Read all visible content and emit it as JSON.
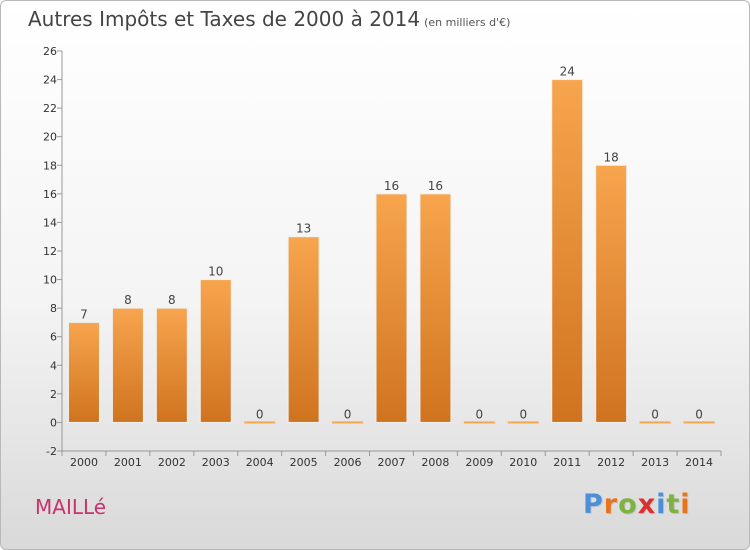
{
  "header": {
    "title": "Autres Impôts et Taxes de 2000 à 2014",
    "subtitle": "(en milliers d'€)"
  },
  "footer": {
    "commune": "MAILLé",
    "brand": "Proxiti",
    "brand_colors": [
      "#4a90d9",
      "#e8731c",
      "#7fb33f",
      "#d9322e",
      "#4a90d9",
      "#7fb33f",
      "#e8731c"
    ]
  },
  "chart_data": {
    "type": "bar",
    "categories": [
      "2000",
      "2001",
      "2002",
      "2003",
      "2004",
      "2005",
      "2006",
      "2007",
      "2008",
      "2009",
      "2010",
      "2011",
      "2012",
      "2013",
      "2014"
    ],
    "values": [
      7,
      8,
      8,
      10,
      0,
      13,
      0,
      16,
      16,
      0,
      0,
      24,
      18,
      0,
      0
    ],
    "data_labels": [
      "7",
      "8",
      "8",
      "10",
      "0",
      "13",
      "0",
      "16",
      "16",
      "0",
      "0",
      "24",
      "18",
      "0",
      "0"
    ],
    "title": "Autres Impôts et Taxes de 2000 à 2014",
    "subtitle": "(en milliers d'€)",
    "ylim": [
      -2,
      26
    ],
    "yticks": [
      -2,
      0,
      2,
      4,
      6,
      8,
      10,
      12,
      14,
      16,
      18,
      20,
      22,
      24,
      26
    ],
    "grid": false,
    "bar_color_top": "#f7a54e",
    "bar_color_bottom": "#d0731f"
  }
}
